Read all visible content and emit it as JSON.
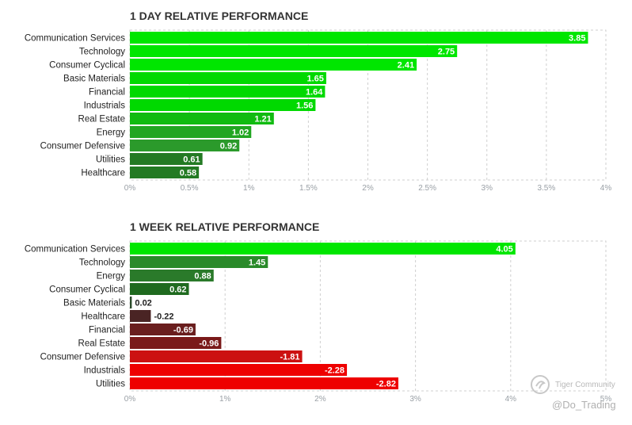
{
  "watermark": {
    "community": "Tiger Community",
    "handle": "@Do_Trading"
  },
  "colors": {
    "strong_up": "#00e600",
    "mid_up": "#2e9e2e",
    "weak_up": "#1f6e22",
    "weak_down": "#5a2020",
    "mid_down": "#8b1a1a",
    "strong_down": "#ee0000"
  },
  "chart_data": [
    {
      "type": "bar",
      "orientation": "horizontal",
      "title": "1 DAY RELATIVE PERFORMANCE",
      "categories": [
        "Communication Services",
        "Technology",
        "Consumer Cyclical",
        "Basic Materials",
        "Financial",
        "Industrials",
        "Real Estate",
        "Energy",
        "Consumer Defensive",
        "Utilities",
        "Healthcare"
      ],
      "values": [
        3.85,
        2.75,
        2.41,
        1.65,
        1.64,
        1.56,
        1.21,
        1.02,
        0.92,
        0.61,
        0.58
      ],
      "value_labels": [
        "3.85",
        "2.75",
        "2.41",
        "1.65",
        "1.64",
        "1.56",
        "1.21",
        "1.02",
        "0.92",
        "0.61",
        "0.58"
      ],
      "bar_colors": [
        "#00e600",
        "#00e600",
        "#00e600",
        "#00d900",
        "#00d900",
        "#00d900",
        "#11bb11",
        "#22a622",
        "#2b9a2b",
        "#237a23",
        "#237a23"
      ],
      "xlim": [
        0,
        4
      ],
      "xticks": [
        0,
        0.5,
        1,
        1.5,
        2,
        2.5,
        3,
        3.5,
        4
      ],
      "xtick_labels": [
        "0%",
        "0.5%",
        "1%",
        "1.5%",
        "2%",
        "2.5%",
        "3%",
        "3.5%",
        "4%"
      ],
      "grid": true
    },
    {
      "type": "bar",
      "orientation": "horizontal",
      "title": "1 WEEK RELATIVE PERFORMANCE",
      "categories": [
        "Communication Services",
        "Technology",
        "Energy",
        "Consumer Cyclical",
        "Basic Materials",
        "Healthcare",
        "Financial",
        "Real Estate",
        "Consumer Defensive",
        "Industrials",
        "Utilities"
      ],
      "values": [
        4.05,
        1.45,
        0.88,
        0.62,
        0.02,
        -0.22,
        -0.69,
        -0.96,
        -1.81,
        -2.28,
        -2.82
      ],
      "value_labels": [
        "4.05",
        "1.45",
        "0.88",
        "0.62",
        "0.02",
        "-0.22",
        "-0.69",
        "-0.96",
        "-1.81",
        "-2.28",
        "-2.82"
      ],
      "bar_colors": [
        "#00e600",
        "#2a8a2a",
        "#2a7a2a",
        "#1f6a1f",
        "#2a4a2a",
        "#4a2424",
        "#6a1e1e",
        "#7a1a1a",
        "#cc1111",
        "#ee0000",
        "#ee0000"
      ],
      "xlim": [
        0,
        5
      ],
      "xticks": [
        0,
        1,
        2,
        3,
        4,
        5
      ],
      "xtick_labels": [
        "0%",
        "1%",
        "2%",
        "3%",
        "4%",
        "5%"
      ],
      "grid": true
    }
  ]
}
